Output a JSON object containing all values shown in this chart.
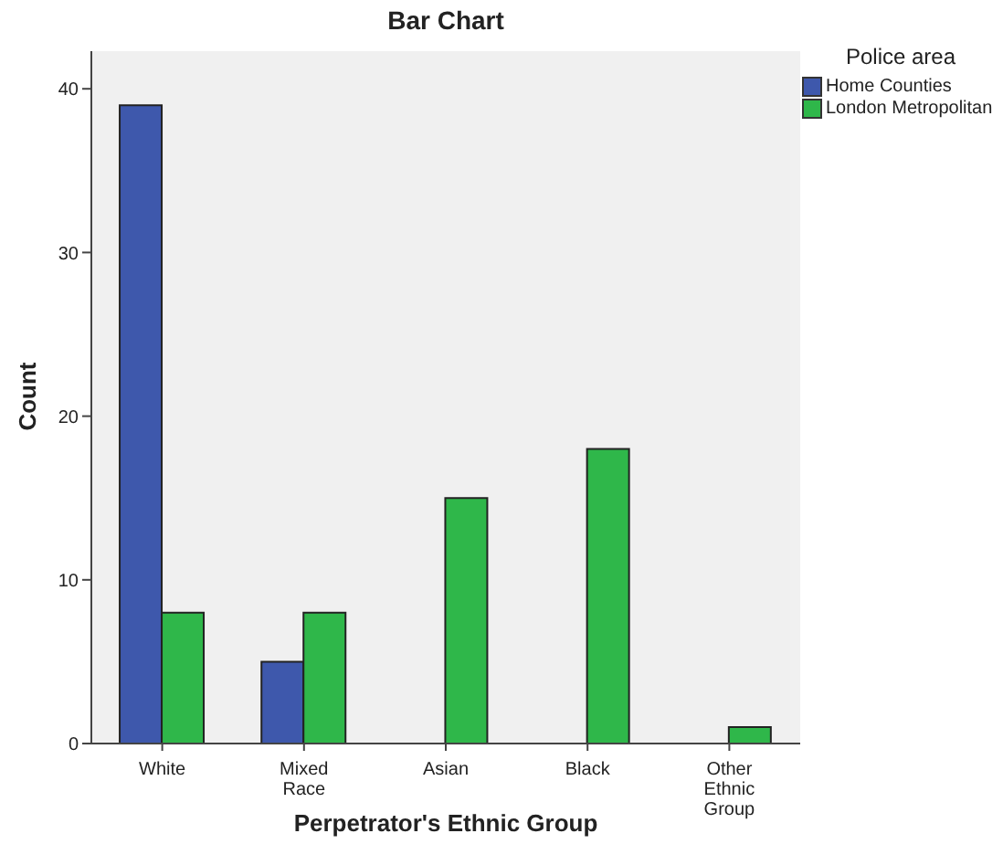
{
  "chart_data": {
    "type": "bar",
    "title": "Bar Chart",
    "xlabel": "Perpetrator's Ethnic Group",
    "ylabel": "Count",
    "legend_title": "Police area",
    "legend": "top right",
    "grid": false,
    "categories": [
      "White",
      "Mixed Race",
      "Asian",
      "Black",
      "Other Ethnic Group"
    ],
    "series": [
      {
        "name": "Home Counties",
        "color": "#3e58ac",
        "values": [
          39,
          5,
          null,
          null,
          null
        ]
      },
      {
        "name": "London Metropolitan",
        "color": "#2fb74a",
        "values": [
          8,
          8,
          15,
          18,
          1
        ]
      }
    ],
    "ylim": [
      0,
      42.3
    ],
    "yticks": [
      0,
      10,
      20,
      30,
      40
    ]
  }
}
